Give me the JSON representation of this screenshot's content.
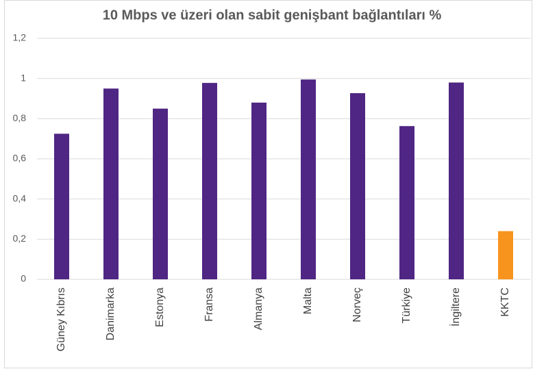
{
  "chart_data": {
    "type": "bar",
    "title": "10 Mbps ve üzeri olan sabit genişbant bağlantıları %",
    "categories": [
      "Güney Kıbrıs",
      "Danimarka",
      "Estonya",
      "Fransa",
      "Almanya",
      "Malta",
      "Norveç",
      "Türkiye",
      "İngiltere",
      "KKTC"
    ],
    "values": [
      0.725,
      0.95,
      0.85,
      0.978,
      0.88,
      0.995,
      0.927,
      0.763,
      0.98,
      0.24
    ],
    "colors": [
      "#4f2683",
      "#4f2683",
      "#4f2683",
      "#4f2683",
      "#4f2683",
      "#4f2683",
      "#4f2683",
      "#4f2683",
      "#4f2683",
      "#f7941d"
    ],
    "ylim": [
      0,
      1.2
    ],
    "yticks": [
      0,
      {
        "value": 0.2,
        "label": "0,2"
      },
      {
        "value": 0.4,
        "label": "0,4"
      },
      {
        "value": 0.6,
        "label": "0,6"
      },
      {
        "value": 0.8,
        "label": "0,8"
      },
      1,
      {
        "value": 1.2,
        "label": "1,2"
      }
    ],
    "grid": true
  }
}
